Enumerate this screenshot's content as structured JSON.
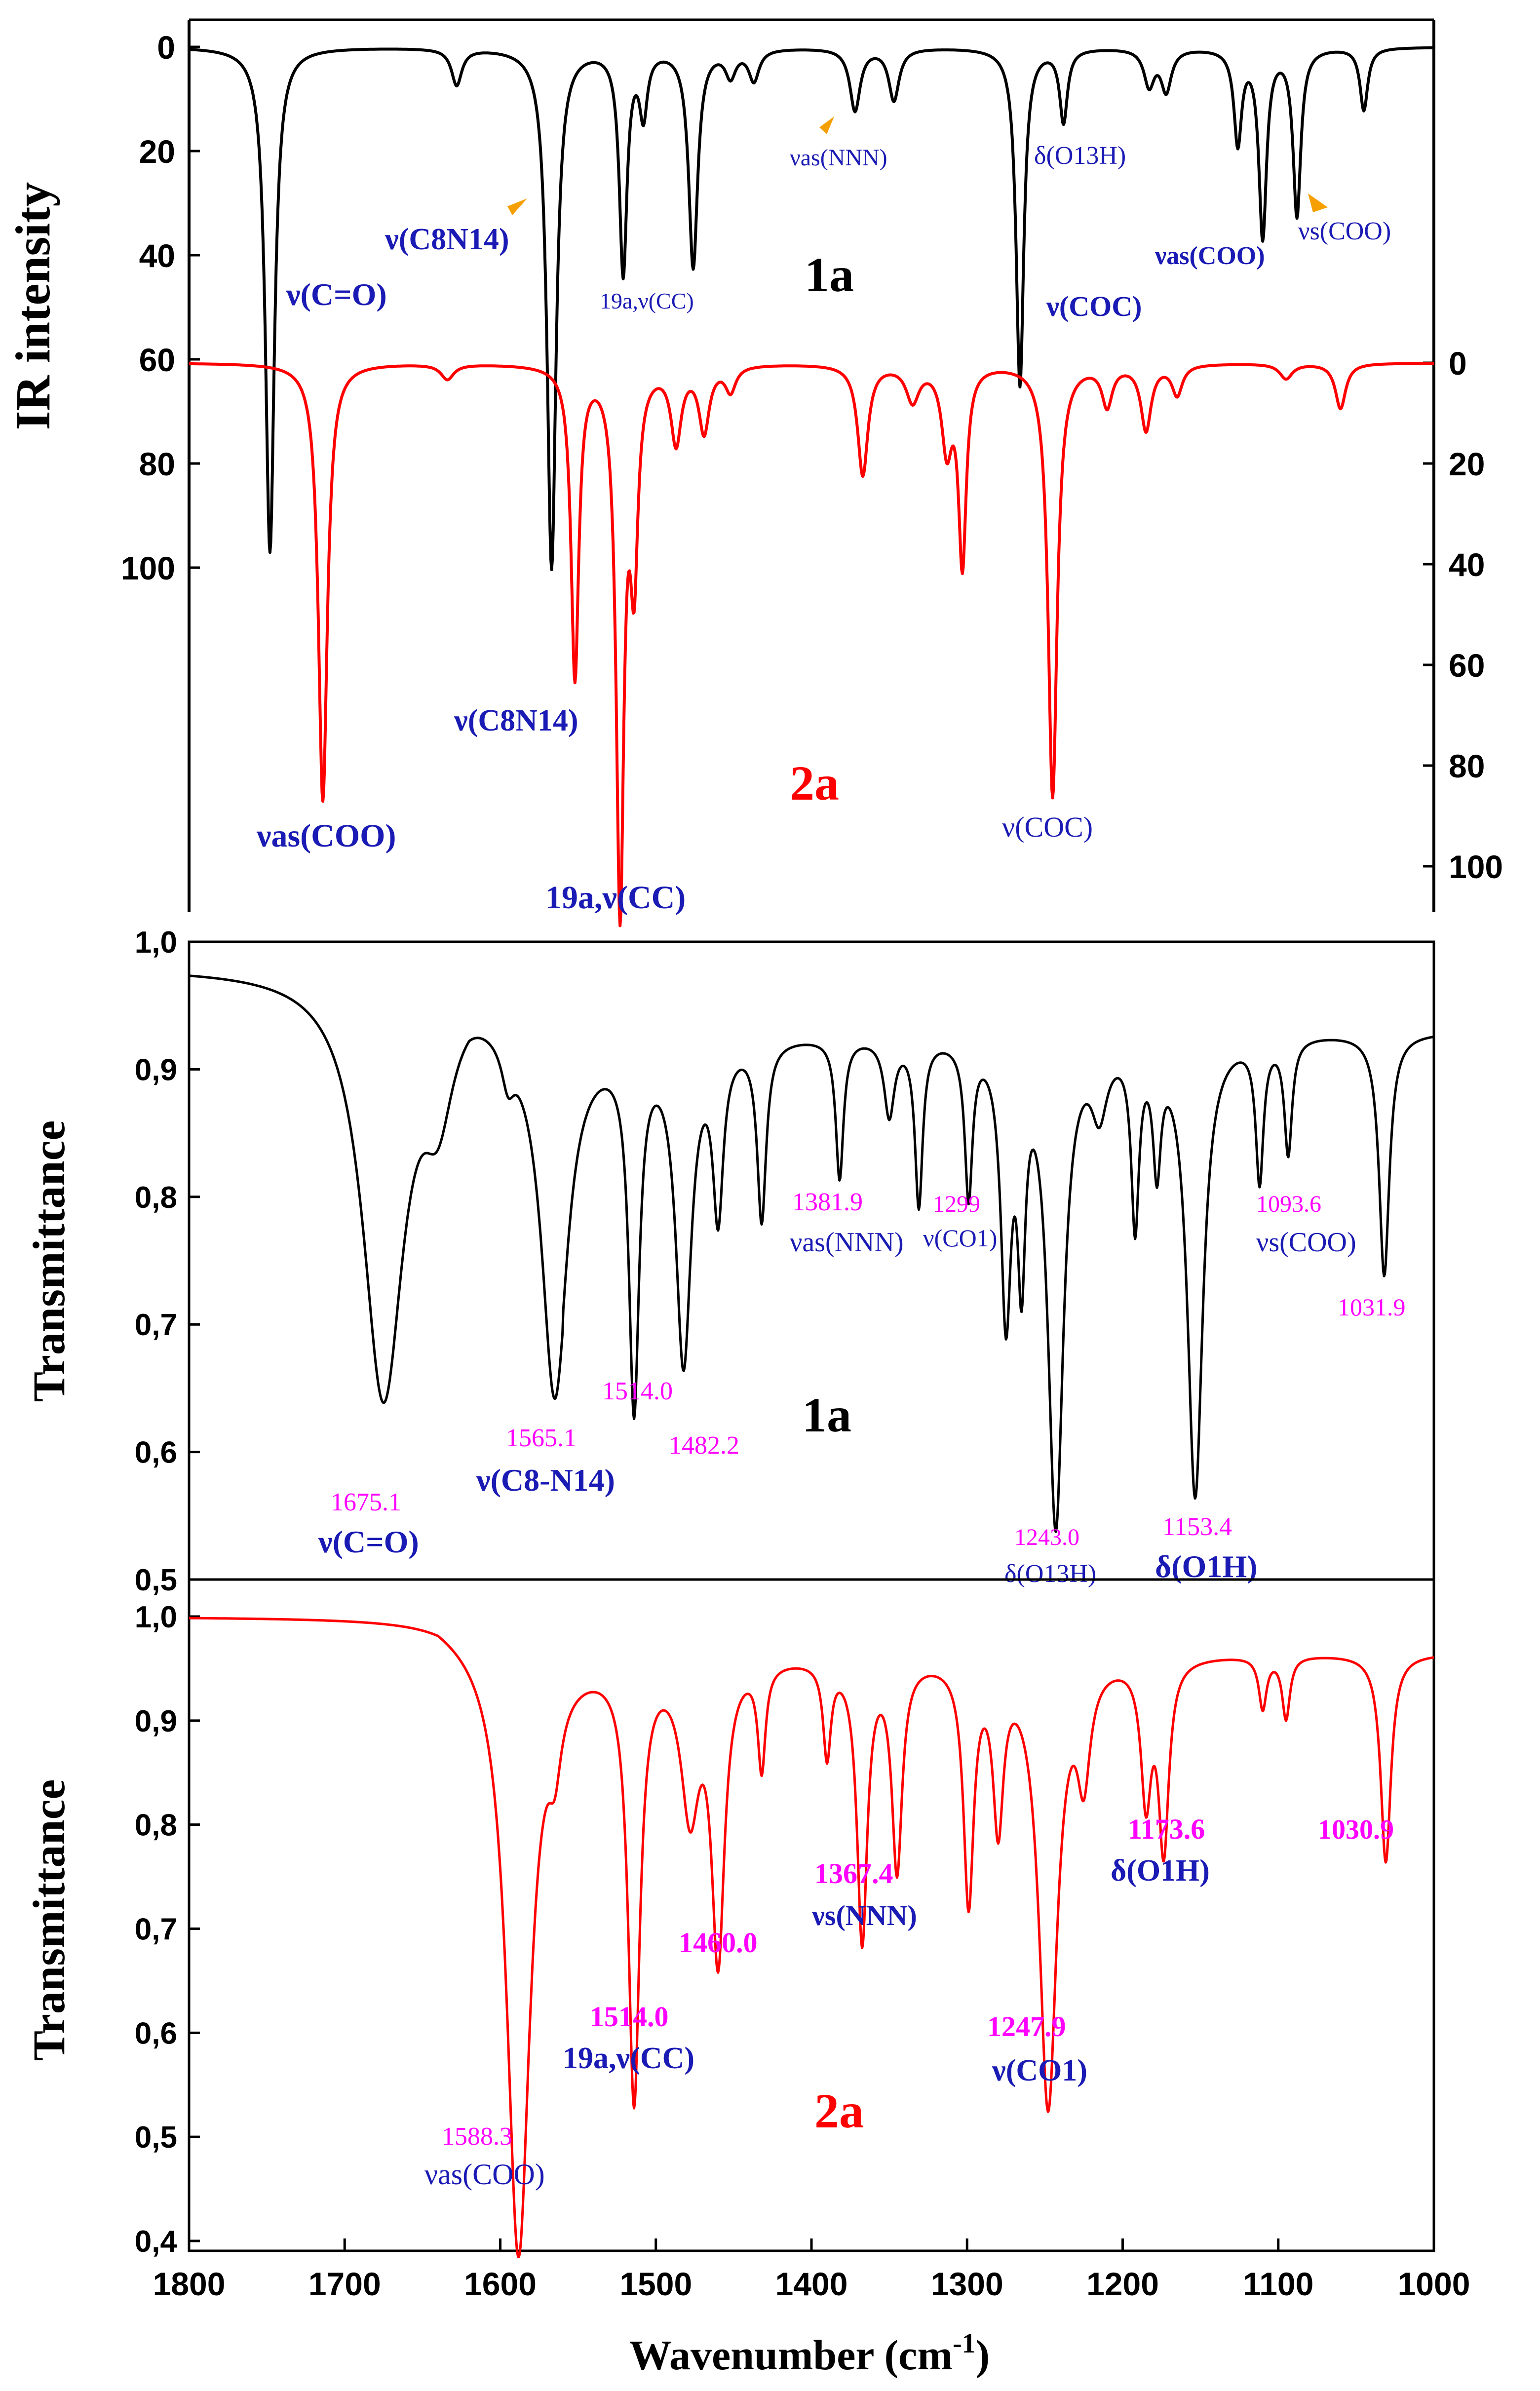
{
  "colors": {
    "black": "#000000",
    "red": "#ff0000",
    "blue": "#1a1ab4",
    "magenta": "#ff00ff",
    "orange": "#f5a000"
  },
  "x_axis": {
    "label": "Wavenumber (cm",
    "label_sup": "-1",
    "label_end": ")",
    "ticks": [
      1800,
      1700,
      1600,
      1500,
      1400,
      1300,
      1200,
      1100,
      1000
    ]
  },
  "chart_data": [
    {
      "type": "line",
      "panel": "top",
      "ylabel": "IR intensity",
      "xlim": [
        1800,
        1000
      ],
      "left_ticks": [
        "0",
        "20",
        "40",
        "60",
        "80",
        "100"
      ],
      "right_ticks": [
        "0",
        "20",
        "40",
        "60",
        "80",
        "100"
      ],
      "series": [
        {
          "name": "1a",
          "color": "#000000",
          "offset": 0,
          "baseline_dip": 0,
          "peaks": [
            [
              1748,
              97,
              3.5
            ],
            [
              1628,
              7,
              4
            ],
            [
              1567,
              100,
              3.5
            ],
            [
              1521,
              43,
              3
            ],
            [
              1508,
              12,
              3
            ],
            [
              1476,
              42,
              3.5
            ],
            [
              1452,
              5,
              4
            ],
            [
              1437,
              6,
              4
            ],
            [
              1372,
              12,
              4
            ],
            [
              1347,
              10,
              4
            ],
            [
              1266,
              65,
              3
            ],
            [
              1238,
              14,
              3
            ],
            [
              1183,
              7,
              4
            ],
            [
              1172,
              8,
              4
            ],
            [
              1126,
              18,
              3
            ],
            [
              1110,
              36,
              3
            ],
            [
              1088,
              32,
              3
            ],
            [
              1045,
              12,
              3
            ]
          ]
        },
        {
          "name": "2a",
          "color": "#ff0000",
          "offset": 60,
          "baseline_dip": 0,
          "peaks": [
            [
              1714,
              87,
              3.5
            ],
            [
              1634,
              3,
              5
            ],
            [
              1552,
              62,
              3
            ],
            [
              1523,
              107,
              3
            ],
            [
              1514,
              38,
              3
            ],
            [
              1487,
              15,
              4
            ],
            [
              1469,
              13,
              4
            ],
            [
              1452,
              5,
              4
            ],
            [
              1367,
              22,
              4
            ],
            [
              1335,
              7,
              5
            ],
            [
              1313,
              16,
              4
            ],
            [
              1303,
              39,
              3
            ],
            [
              1245,
              86,
              3.5
            ],
            [
              1210,
              8,
              4
            ],
            [
              1185,
              13,
              4
            ],
            [
              1165,
              6,
              4
            ],
            [
              1095,
              3,
              5
            ],
            [
              1060,
              9,
              4
            ]
          ]
        }
      ],
      "labels": [
        {
          "text": "1a",
          "bold": true
        },
        {
          "text": "2a",
          "bold": true
        },
        {
          "text": "ν(C=O)"
        },
        {
          "text": "ν(C8N14)"
        },
        {
          "text": "19a,ν(CC)"
        },
        {
          "text": "νas(NNN)"
        },
        {
          "text": "δ(O13H)"
        },
        {
          "text": "ν(COC)"
        },
        {
          "text": "νas(COO)"
        },
        {
          "text": "νs(COO)"
        },
        {
          "text": "ν(C8N14)"
        },
        {
          "text": "νas(COO)"
        },
        {
          "text": "19a,ν(CC)"
        },
        {
          "text": "ν(COC)"
        }
      ]
    },
    {
      "type": "line",
      "panel": "middle",
      "ylabel": "Transmittance",
      "xlim": [
        1800,
        1000
      ],
      "ylim": [
        0.5,
        1.0
      ],
      "y_ticks": [
        "1,0",
        "0,9",
        "0,8",
        "0,7",
        "0,6",
        "0,5"
      ],
      "series": [
        {
          "name": "1a",
          "color": "#000000",
          "baseline": 0.98,
          "peaks": [
            [
              1675.1,
              0.33,
              16
            ],
            [
              1640,
              0.08,
              12
            ],
            [
              1595,
              0.03,
              5
            ],
            [
              1565.1,
              0.27,
              10
            ],
            [
              1514.0,
              0.28,
              4
            ],
            [
              1482.2,
              0.25,
              6
            ],
            [
              1460,
              0.13,
              4
            ],
            [
              1432,
              0.14,
              3.5
            ],
            [
              1381.9,
              0.11,
              3
            ],
            [
              1350,
              0.06,
              4
            ],
            [
              1331,
              0.13,
              3
            ],
            [
              1299,
              0.12,
              3
            ],
            [
              1275,
              0.21,
              4
            ],
            [
              1265,
              0.16,
              3
            ],
            [
              1243.0,
              0.38,
              6
            ],
            [
              1215,
              0.05,
              6
            ],
            [
              1192,
              0.14,
              3
            ],
            [
              1178,
              0.09,
              3
            ],
            [
              1153.4,
              0.36,
              6
            ],
            [
              1112,
              0.11,
              3
            ],
            [
              1093.6,
              0.09,
              3
            ],
            [
              1031.9,
              0.19,
              4
            ]
          ]
        },
        {
          "name": "2a",
          "color": "#ff0000",
          "baseline": 1.0,
          "peaks": [
            [
              1588.3,
              0.58,
              9
            ],
            [
              1565,
              0.06,
              5
            ],
            [
              1514.0,
              0.42,
              4.5
            ],
            [
              1478,
              0.14,
              7
            ],
            [
              1460.0,
              0.28,
              5
            ],
            [
              1432,
              0.1,
              3
            ],
            [
              1390,
              0.09,
              3
            ],
            [
              1367.4,
              0.27,
              4
            ],
            [
              1345,
              0.2,
              4
            ],
            [
              1299,
              0.23,
              4
            ],
            [
              1280,
              0.15,
              4
            ],
            [
              1247.9,
              0.43,
              7
            ],
            [
              1225,
              0.1,
              5
            ],
            [
              1185,
              0.13,
              4
            ],
            [
              1173.6,
              0.18,
              4
            ],
            [
              1110,
              0.05,
              3
            ],
            [
              1095,
              0.06,
              3
            ],
            [
              1030.9,
              0.2,
              4
            ]
          ]
        }
      ],
      "labels": [
        {
          "text": "1a",
          "bold": true
        },
        {
          "text": "1675.1"
        },
        {
          "text": "ν(C=O)"
        },
        {
          "text": "1565.1"
        },
        {
          "text": "ν(C8-N14)"
        },
        {
          "text": "1514.0"
        },
        {
          "text": "1482.2"
        },
        {
          "text": "1381.9"
        },
        {
          "text": "νas(NNN)"
        },
        {
          "text": "1299"
        },
        {
          "text": "ν(CO1)"
        },
        {
          "text": "1243.0"
        },
        {
          "text": "δ(O13H)"
        },
        {
          "text": "1153.4"
        },
        {
          "text": "δ(O1H)"
        },
        {
          "text": "1093.6"
        },
        {
          "text": "νs(COO)"
        },
        {
          "text": "1031.9"
        }
      ]
    },
    {
      "type": "line",
      "panel": "bottom",
      "ylabel": "Transmittance",
      "xlim": [
        1800,
        1000
      ],
      "ylim": [
        0.4,
        1.0
      ],
      "y_ticks": [
        "1,0",
        "0,9",
        "0,8",
        "0,7",
        "0,6",
        "0,5",
        "0,4"
      ],
      "labels": [
        {
          "text": "2a",
          "bold": true
        },
        {
          "text": "1588.3"
        },
        {
          "text": "νas(COO)"
        },
        {
          "text": "1514.0"
        },
        {
          "text": "19a,ν(CC)"
        },
        {
          "text": "1460.0"
        },
        {
          "text": "1367.4"
        },
        {
          "text": "νs(NNN)"
        },
        {
          "text": "1247.9"
        },
        {
          "text": "ν(CO1)"
        },
        {
          "text": "1173.6"
        },
        {
          "text": "δ(O1H)"
        },
        {
          "text": "1030.9"
        }
      ]
    }
  ]
}
